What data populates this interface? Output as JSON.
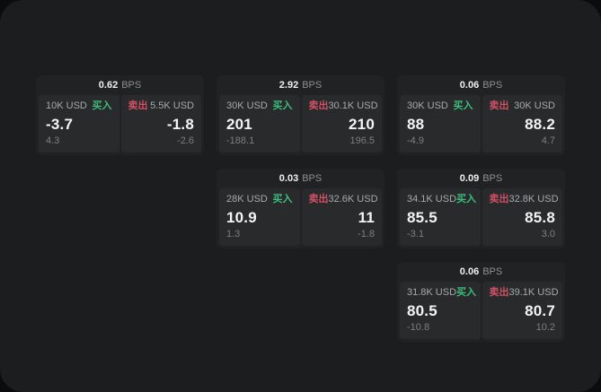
{
  "colors": {
    "buy": "#3cbd7e",
    "sell": "#d15064",
    "panel_background": "#1c1d1e",
    "card_background": "#212223",
    "subpanel_background": "#292a2b"
  },
  "cards": [
    {
      "bps": "0.62",
      "bps_unit": "BPS",
      "buy": {
        "size": "10K USD",
        "label": "买入",
        "price": "-3.7",
        "delta": "4.3"
      },
      "sell": {
        "label": "卖出",
        "size": "5.5K USD",
        "price": "-1.8",
        "delta": "-2.6"
      }
    },
    {
      "bps": "2.92",
      "bps_unit": "BPS",
      "buy": {
        "size": "30K USD",
        "label": "买入",
        "price": "201",
        "delta": "-188.1"
      },
      "sell": {
        "label": "卖出",
        "size": "30.1K USD",
        "price": "210",
        "delta": "196.5"
      }
    },
    {
      "bps": "0.06",
      "bps_unit": "BPS",
      "buy": {
        "size": "30K USD",
        "label": "买入",
        "price": "88",
        "delta": "-4.9"
      },
      "sell": {
        "label": "卖出",
        "size": "30K USD",
        "price": "88.2",
        "delta": "4.7"
      }
    },
    {
      "bps": "0.03",
      "bps_unit": "BPS",
      "buy": {
        "size": "28K USD",
        "label": "买入",
        "price": "10.9",
        "delta": "1.3"
      },
      "sell": {
        "label": "卖出",
        "size": "32.6K USD",
        "price": "11",
        "delta": "-1.8"
      }
    },
    {
      "bps": "0.09",
      "bps_unit": "BPS",
      "buy": {
        "size": "34.1K USD",
        "label": "买入",
        "price": "85.5",
        "delta": "-3.1"
      },
      "sell": {
        "label": "卖出",
        "size": "32.8K USD",
        "price": "85.8",
        "delta": "3.0"
      }
    },
    {
      "bps": "0.06",
      "bps_unit": "BPS",
      "buy": {
        "size": "31.8K USD",
        "label": "买入",
        "price": "80.5",
        "delta": "-10.8"
      },
      "sell": {
        "label": "卖出",
        "size": "39.1K USD",
        "price": "80.7",
        "delta": "10.2"
      }
    }
  ]
}
